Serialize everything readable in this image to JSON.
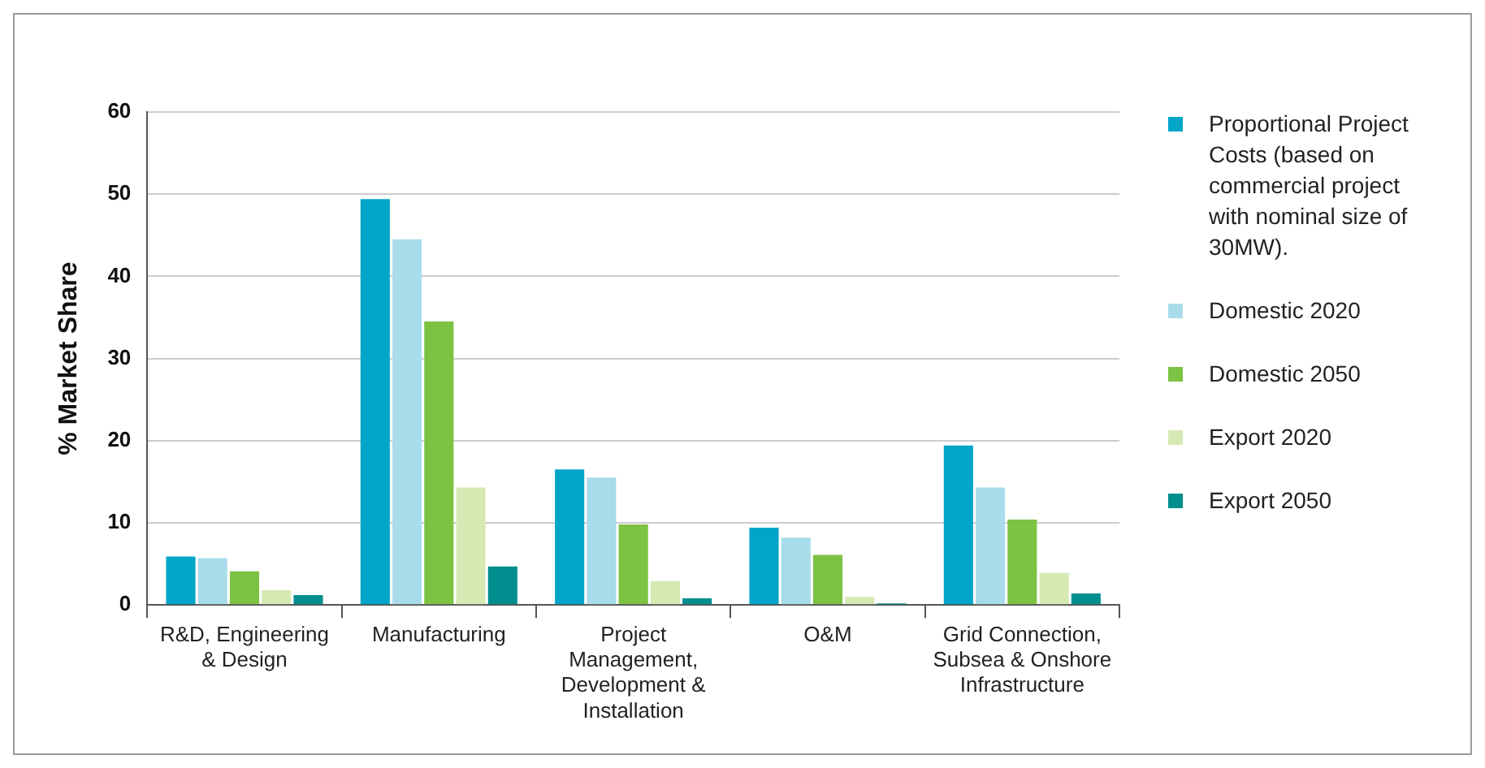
{
  "chart_data": {
    "type": "bar",
    "ylabel": "% Market Share",
    "categories": [
      "R&D, Engineering & Design",
      "Manufacturing",
      "Project Management, Development & Installation",
      "O&M",
      "Grid Connection, Subsea & Onshore Infrastructure"
    ],
    "series": [
      {
        "name": "Proportional Project Costs (based on commercial project with nominal size of 30MW).",
        "color": "#00a5c8",
        "values": [
          5.9,
          49.4,
          16.5,
          9.4,
          19.4
        ]
      },
      {
        "name": "Domestic 2020",
        "color": "#a9dcea",
        "values": [
          5.7,
          44.5,
          15.5,
          8.2,
          14.3
        ]
      },
      {
        "name": "Domestic 2050",
        "color": "#7cc243",
        "values": [
          4.1,
          34.5,
          9.8,
          6.1,
          10.4
        ]
      },
      {
        "name": "Export 2020",
        "color": "#d6e9b3",
        "values": [
          1.8,
          14.3,
          2.9,
          1.0,
          3.9
        ]
      },
      {
        "name": "Export 2050",
        "color": "#008e8e",
        "values": [
          1.2,
          4.7,
          0.8,
          0.2,
          1.4
        ]
      }
    ],
    "ylim": [
      0,
      60
    ],
    "yticks": [
      0,
      10,
      20,
      30,
      40,
      50,
      60
    ],
    "grid": "y",
    "legend": "right"
  }
}
